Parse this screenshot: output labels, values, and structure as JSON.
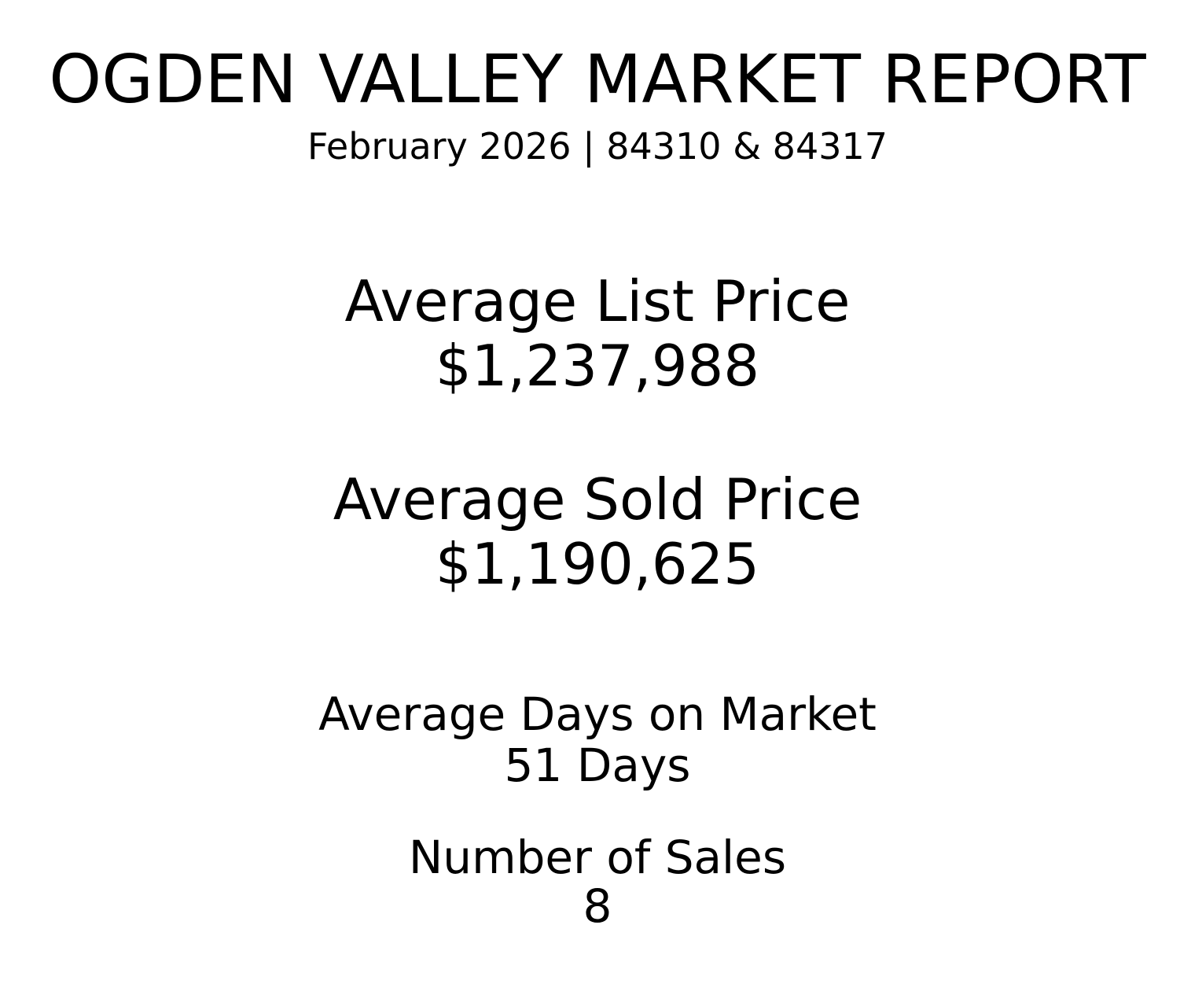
{
  "header": {
    "title": "OGDEN VALLEY MARKET REPORT",
    "subtitle": "February 2026 | 84310 & 84317"
  },
  "stats": [
    {
      "label": "Average List Price",
      "value": "$1,237,988"
    },
    {
      "label": "Average Sold Price",
      "value": "$1,190,625"
    },
    {
      "label": "Average Days on Market",
      "value": "51 Days"
    },
    {
      "label": "Number of Sales",
      "value": "8"
    }
  ]
}
